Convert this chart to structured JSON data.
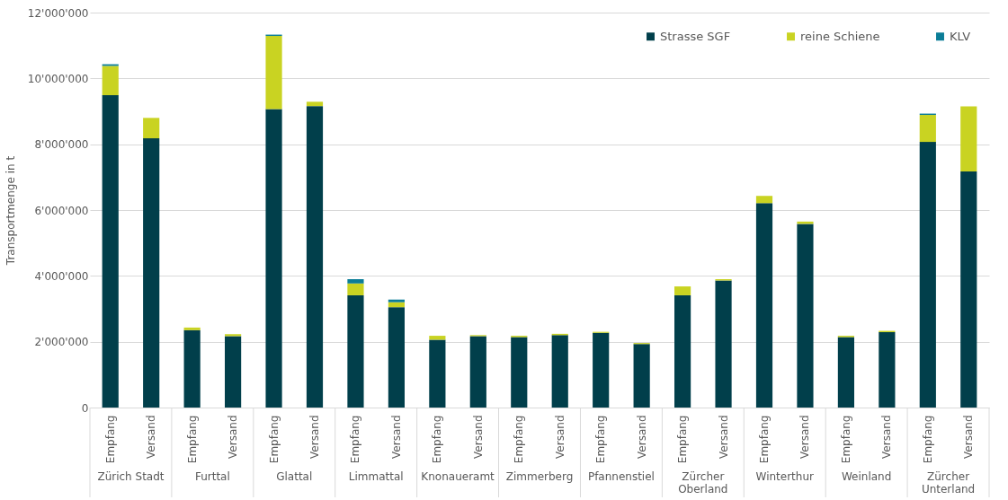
{
  "chart_data": {
    "type": "bar",
    "stacked": true,
    "ylabel": "Transportmenge in t",
    "categories": [
      "Empfang",
      "Versand",
      "Empfang",
      "Versand",
      "Empfang",
      "Versand",
      "Empfang",
      "Versand",
      "Empfang",
      "Versand",
      "Empfang",
      "Versand",
      "Empfang",
      "Versand",
      "Empfang",
      "Versand",
      "Empfang",
      "Versand",
      "Empfang",
      "Versand",
      "Empfang",
      "Versand"
    ],
    "series": [
      {
        "name": "Strasse SGF",
        "color": "#013f4b",
        "values": [
          9490000,
          8180000,
          2350000,
          2170000,
          9070000,
          9160000,
          3410000,
          3050000,
          2060000,
          2170000,
          2140000,
          2200000,
          2270000,
          1930000,
          3410000,
          3860000,
          6210000,
          5580000,
          2140000,
          2290000,
          8070000,
          7170000
        ]
      },
      {
        "name": "reine Schiene",
        "color": "#c9d322",
        "values": [
          890000,
          620000,
          80000,
          60000,
          2220000,
          130000,
          360000,
          150000,
          120000,
          30000,
          40000,
          40000,
          30000,
          30000,
          270000,
          40000,
          220000,
          70000,
          40000,
          40000,
          820000,
          1980000
        ]
      },
      {
        "name": "KLV",
        "color": "#0b7d97",
        "values": [
          50000,
          0,
          0,
          0,
          40000,
          0,
          130000,
          80000,
          0,
          0,
          0,
          0,
          0,
          0,
          0,
          0,
          0,
          0,
          0,
          0,
          40000,
          0
        ]
      }
    ],
    "annotations": [
      "Zürich Stadt",
      "Furttal",
      "Glattal",
      "Limmattal",
      "Knonaueramt",
      "Zimmerberg",
      "Pfannenstiel",
      "Zürcher Oberland",
      "Winterthur",
      "Weinland",
      "Zürcher Unterland"
    ],
    "ylim": [
      0,
      12000000
    ],
    "yticks": [
      0,
      {
        "value": 2000000,
        "label": "2'000'000"
      },
      {
        "value": 4000000,
        "label": "4'000'000"
      },
      {
        "value": 6000000,
        "label": "6'000'000"
      },
      {
        "value": 8000000,
        "label": "8'000'000"
      },
      {
        "value": 10000000,
        "label": "10'000'000"
      },
      {
        "value": 12000000,
        "label": "12'000'000"
      }
    ],
    "grid": "y",
    "legend": "top right"
  }
}
